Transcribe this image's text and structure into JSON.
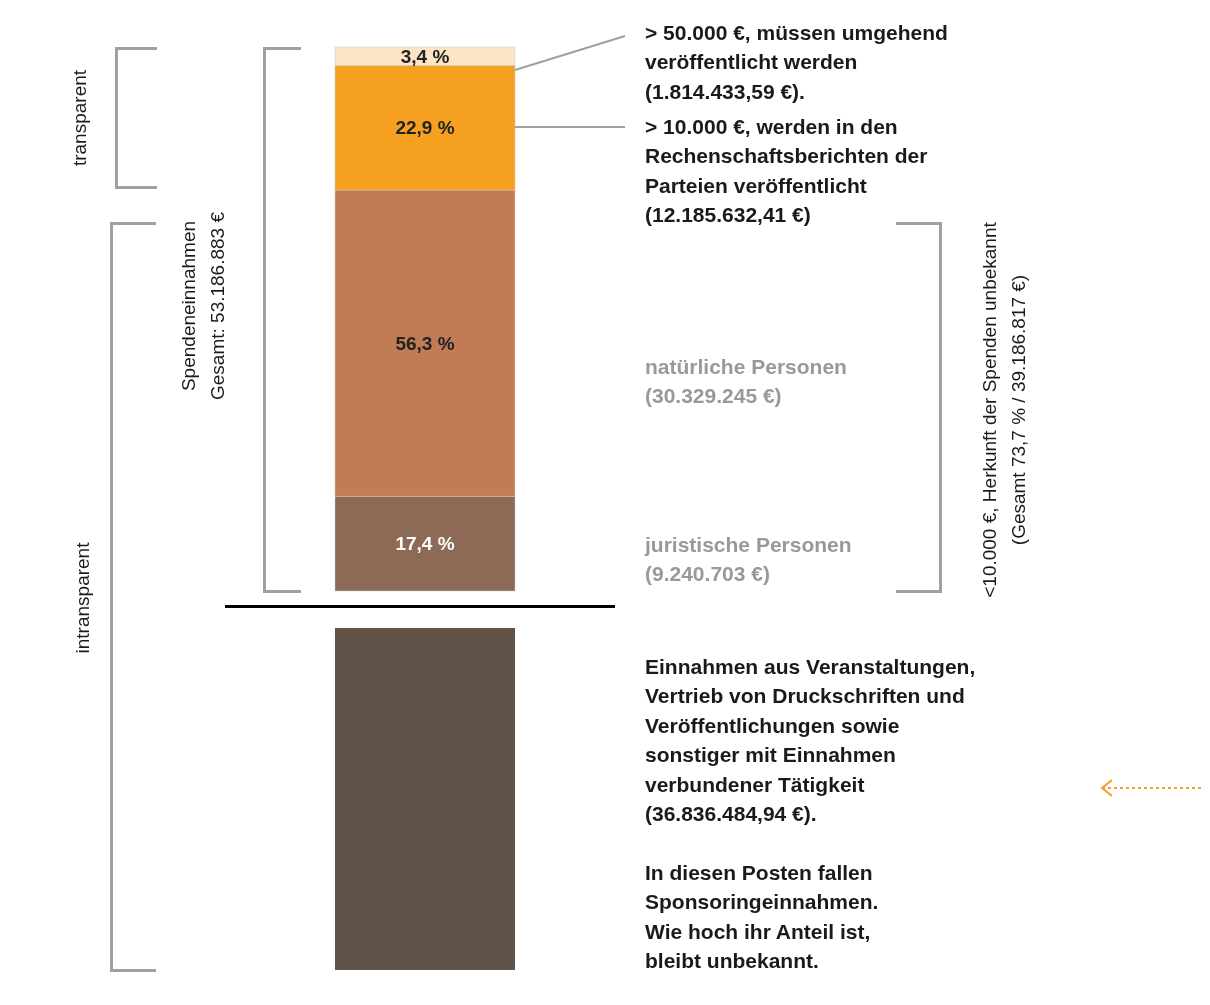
{
  "chart_data": {
    "type": "bar",
    "stacked": true,
    "categories": [
      null
    ],
    "series": [
      {
        "color": "#8c6a55",
        "values": [
          17.4
        ],
        "value_labels": [
          "17,4 %"
        ]
      },
      {
        "color": "#c27c55",
        "values": [
          56.3
        ],
        "value_labels": [
          "56,3 %"
        ]
      },
      {
        "color": "#f5a01e",
        "values": [
          22.9
        ],
        "value_labels": [
          "22,9 %"
        ]
      },
      {
        "color": "#fce4c4",
        "values": [
          3.4
        ],
        "value_labels": [
          "3,4 %"
        ]
      }
    ],
    "annotations": [
      "transparent",
      "intransparent",
      "Spendeneinnahmen\nGesamt: 53.186.883 €",
      "> 50.000 €, müssen umgehend\nveröffentlicht werden\n(1.814.433,59 €).",
      "> 10.000 €, werden in den\nRechenschaftsberichten der\nParteien veröffentlicht\n(12.185.632,41 €)",
      "natürliche Personen\n(30.329.245 €)",
      "juristische Personen\n(9.240.703 €)",
      "<10.000 €, Herkunft der Spenden unbekannt\n(Gesamt 73,7 % / 39.186.817 €)",
      "Einnahmen aus Veranstaltungen,\nVertrieb von Druckschriften und\nVeröffentlichungen sowie\nsonstiger mit Einnahmen\nverbundener Tätigkeit\n(36.836.484,94 €).\n\nIn diesen Posten fallen\nSponsoringeinnahmen.\nWie hoch ihr Anteil ist,\nbleibt unbekannt."
    ]
  }
}
